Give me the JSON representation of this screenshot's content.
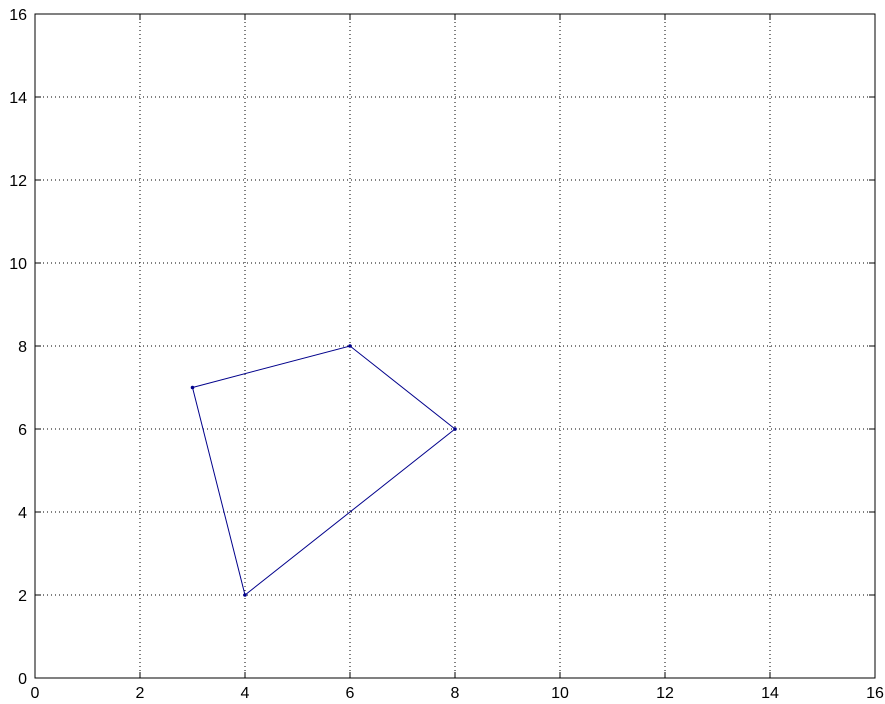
{
  "chart_data": {
    "type": "line",
    "title": "",
    "xlabel": "",
    "ylabel": "",
    "xlim": [
      0,
      16
    ],
    "ylim": [
      0,
      16
    ],
    "x_ticks": [
      0,
      2,
      4,
      6,
      8,
      10,
      12,
      14,
      16
    ],
    "y_ticks": [
      0,
      2,
      4,
      6,
      8,
      10,
      12,
      14,
      16
    ],
    "x_tick_labels": [
      "0",
      "2",
      "4",
      "6",
      "8",
      "10",
      "12",
      "14",
      "16"
    ],
    "y_tick_labels": [
      "0",
      "2",
      "4",
      "6",
      "8",
      "10",
      "12",
      "14",
      "16"
    ],
    "grid": true,
    "grid_style": "dotted",
    "series": [
      {
        "closed": true,
        "color": "#00008b",
        "marker": "point",
        "points": [
          {
            "x": 3,
            "y": 7
          },
          {
            "x": 6,
            "y": 8
          },
          {
            "x": 8,
            "y": 6
          },
          {
            "x": 4,
            "y": 2
          }
        ]
      }
    ]
  }
}
